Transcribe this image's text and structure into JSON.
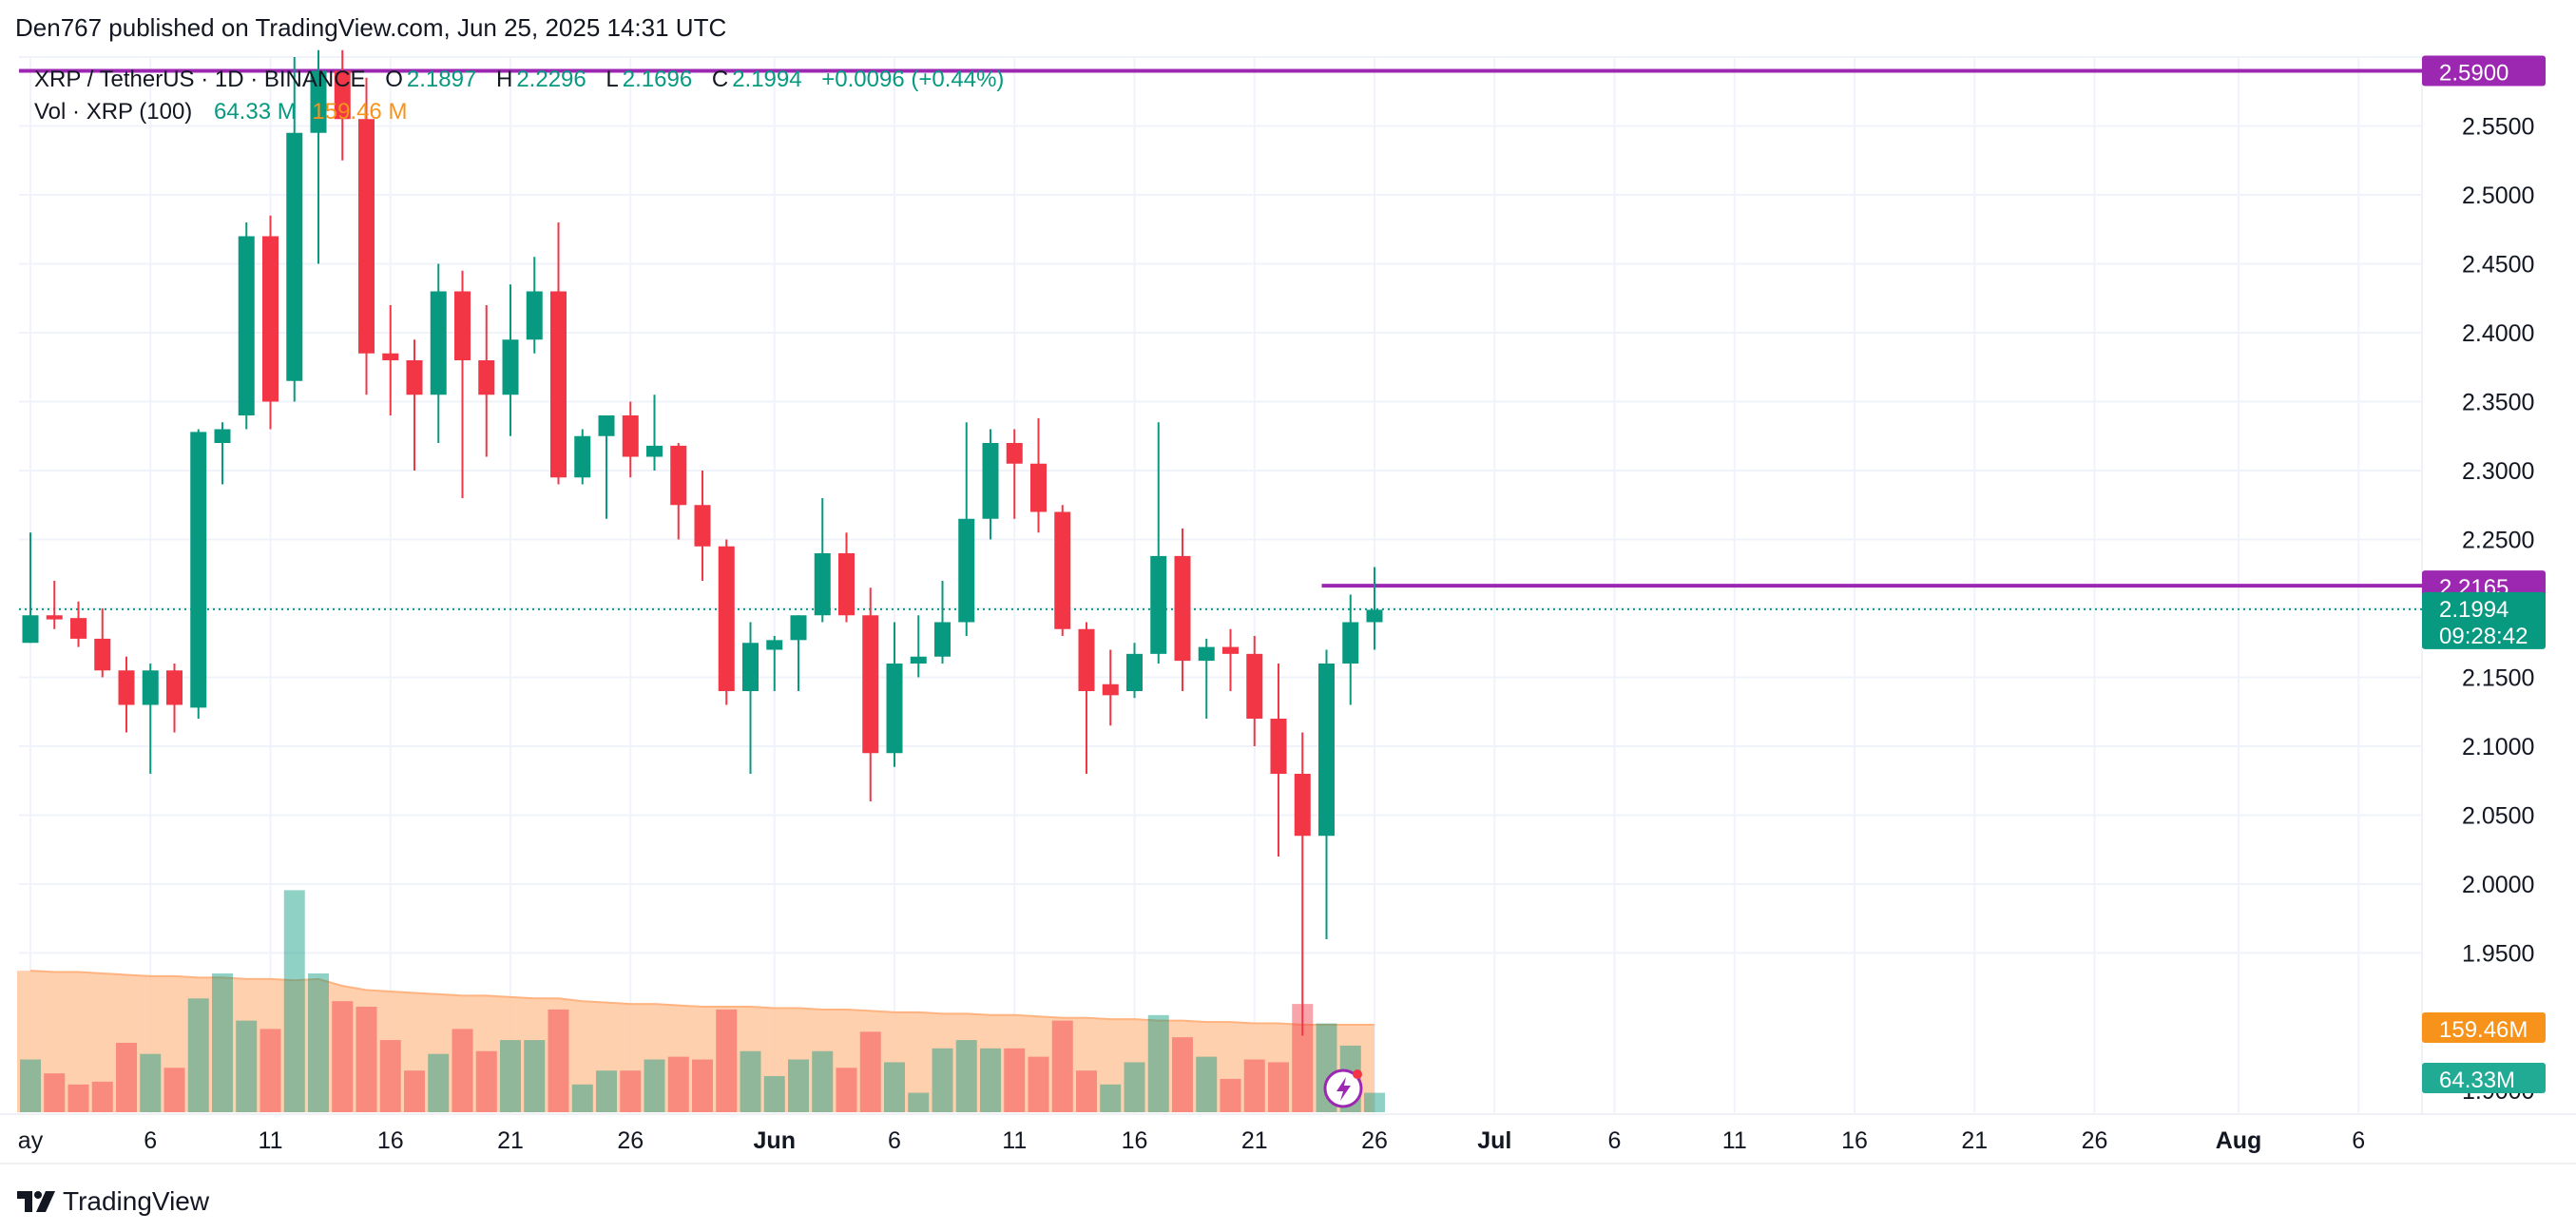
{
  "header": {
    "published": "Den767 published on TradingView.com, Jun 25, 2025 14:31 UTC"
  },
  "legend": {
    "symbol": "XRP / TetherUS · 1D · BINANCE",
    "open_label": "O",
    "open": "2.1897",
    "high_label": "H",
    "high": "2.2296",
    "low_label": "L",
    "low": "2.1696",
    "close_label": "C",
    "close": "2.1994",
    "change": "+0.0096 (+0.44%)",
    "vol_label": "Vol · XRP (100)",
    "vol_value": "64.33 M",
    "vol_ma": "159.46 M"
  },
  "footer": {
    "brand": "TradingView",
    "logo_icon": "tradingview-logo-icon"
  },
  "colors": {
    "up": "#089981",
    "down": "#f23645",
    "line": "#9c27b0",
    "vol_ma_fill": "#ffc8a0",
    "vol_ma_label": "#f7931a"
  },
  "chart_data": {
    "type": "candlestick",
    "title": "XRP / TetherUS · 1D · BINANCE",
    "ylim": [
      1.8,
      2.6
    ],
    "y_ticks": [
      "1.9500",
      "2.0000",
      "2.0500",
      "2.1000",
      "2.1500",
      "2.2000",
      "2.2500",
      "2.3000",
      "2.3500",
      "2.4000",
      "2.4500",
      "2.5000",
      "2.5500"
    ],
    "x_ticks": [
      {
        "day": 0,
        "label": "ay"
      },
      {
        "day": 5,
        "label": "6"
      },
      {
        "day": 10,
        "label": "11"
      },
      {
        "day": 15,
        "label": "16"
      },
      {
        "day": 20,
        "label": "21"
      },
      {
        "day": 25,
        "label": "26"
      },
      {
        "day": 31,
        "label": "Jun"
      },
      {
        "day": 36,
        "label": "6"
      },
      {
        "day": 41,
        "label": "11"
      },
      {
        "day": 46,
        "label": "16"
      },
      {
        "day": 51,
        "label": "21"
      },
      {
        "day": 56,
        "label": "26"
      },
      {
        "day": 61,
        "label": "Jul"
      },
      {
        "day": 66,
        "label": "6"
      },
      {
        "day": 71,
        "label": "11"
      },
      {
        "day": 76,
        "label": "16"
      },
      {
        "day": 81,
        "label": "21"
      },
      {
        "day": 86,
        "label": "26"
      },
      {
        "day": 92,
        "label": "Aug"
      },
      {
        "day": 97,
        "label": "6"
      }
    ],
    "candles": [
      {
        "o": 2.175,
        "h": 2.255,
        "l": 2.175,
        "c": 2.195
      },
      {
        "o": 2.195,
        "h": 2.22,
        "l": 2.185,
        "c": 2.192
      },
      {
        "o": 2.193,
        "h": 2.205,
        "l": 2.172,
        "c": 2.178
      },
      {
        "o": 2.178,
        "h": 2.2,
        "l": 2.15,
        "c": 2.155
      },
      {
        "o": 2.155,
        "h": 2.165,
        "l": 2.11,
        "c": 2.13
      },
      {
        "o": 2.13,
        "h": 2.16,
        "l": 2.08,
        "c": 2.155
      },
      {
        "o": 2.155,
        "h": 2.16,
        "l": 2.11,
        "c": 2.13
      },
      {
        "o": 2.128,
        "h": 2.33,
        "l": 2.12,
        "c": 2.328
      },
      {
        "o": 2.32,
        "h": 2.335,
        "l": 2.29,
        "c": 2.33
      },
      {
        "o": 2.34,
        "h": 2.48,
        "l": 2.33,
        "c": 2.47
      },
      {
        "o": 2.47,
        "h": 2.485,
        "l": 2.33,
        "c": 2.35
      },
      {
        "o": 2.365,
        "h": 2.6,
        "l": 2.35,
        "c": 2.545
      },
      {
        "o": 2.545,
        "h": 2.605,
        "l": 2.45,
        "c": 2.59
      },
      {
        "o": 2.59,
        "h": 2.605,
        "l": 2.525,
        "c": 2.555
      },
      {
        "o": 2.555,
        "h": 2.585,
        "l": 2.355,
        "c": 2.385
      },
      {
        "o": 2.385,
        "h": 2.42,
        "l": 2.34,
        "c": 2.38
      },
      {
        "o": 2.38,
        "h": 2.395,
        "l": 2.3,
        "c": 2.355
      },
      {
        "o": 2.355,
        "h": 2.45,
        "l": 2.32,
        "c": 2.43
      },
      {
        "o": 2.43,
        "h": 2.445,
        "l": 2.28,
        "c": 2.38
      },
      {
        "o": 2.38,
        "h": 2.42,
        "l": 2.31,
        "c": 2.355
      },
      {
        "o": 2.355,
        "h": 2.435,
        "l": 2.325,
        "c": 2.395
      },
      {
        "o": 2.395,
        "h": 2.455,
        "l": 2.385,
        "c": 2.43
      },
      {
        "o": 2.43,
        "h": 2.48,
        "l": 2.29,
        "c": 2.295
      },
      {
        "o": 2.295,
        "h": 2.33,
        "l": 2.29,
        "c": 2.325
      },
      {
        "o": 2.325,
        "h": 2.34,
        "l": 2.265,
        "c": 2.34
      },
      {
        "o": 2.34,
        "h": 2.35,
        "l": 2.295,
        "c": 2.31
      },
      {
        "o": 2.31,
        "h": 2.355,
        "l": 2.3,
        "c": 2.318
      },
      {
        "o": 2.318,
        "h": 2.32,
        "l": 2.25,
        "c": 2.275
      },
      {
        "o": 2.275,
        "h": 2.3,
        "l": 2.22,
        "c": 2.245
      },
      {
        "o": 2.245,
        "h": 2.25,
        "l": 2.13,
        "c": 2.14
      },
      {
        "o": 2.14,
        "h": 2.19,
        "l": 2.08,
        "c": 2.175
      },
      {
        "o": 2.17,
        "h": 2.18,
        "l": 2.14,
        "c": 2.177
      },
      {
        "o": 2.177,
        "h": 2.195,
        "l": 2.14,
        "c": 2.195
      },
      {
        "o": 2.195,
        "h": 2.28,
        "l": 2.19,
        "c": 2.24
      },
      {
        "o": 2.24,
        "h": 2.255,
        "l": 2.19,
        "c": 2.195
      },
      {
        "o": 2.195,
        "h": 2.215,
        "l": 2.06,
        "c": 2.095
      },
      {
        "o": 2.095,
        "h": 2.19,
        "l": 2.085,
        "c": 2.16
      },
      {
        "o": 2.16,
        "h": 2.195,
        "l": 2.15,
        "c": 2.165
      },
      {
        "o": 2.165,
        "h": 2.22,
        "l": 2.16,
        "c": 2.19
      },
      {
        "o": 2.19,
        "h": 2.335,
        "l": 2.18,
        "c": 2.265
      },
      {
        "o": 2.265,
        "h": 2.33,
        "l": 2.25,
        "c": 2.32
      },
      {
        "o": 2.32,
        "h": 2.33,
        "l": 2.265,
        "c": 2.305
      },
      {
        "o": 2.305,
        "h": 2.338,
        "l": 2.255,
        "c": 2.27
      },
      {
        "o": 2.27,
        "h": 2.275,
        "l": 2.18,
        "c": 2.185
      },
      {
        "o": 2.185,
        "h": 2.19,
        "l": 2.08,
        "c": 2.14
      },
      {
        "o": 2.145,
        "h": 2.17,
        "l": 2.115,
        "c": 2.137
      },
      {
        "o": 2.14,
        "h": 2.175,
        "l": 2.135,
        "c": 2.167
      },
      {
        "o": 2.167,
        "h": 2.335,
        "l": 2.16,
        "c": 2.238
      },
      {
        "o": 2.238,
        "h": 2.258,
        "l": 2.14,
        "c": 2.162
      },
      {
        "o": 2.162,
        "h": 2.178,
        "l": 2.12,
        "c": 2.172
      },
      {
        "o": 2.172,
        "h": 2.185,
        "l": 2.14,
        "c": 2.167
      },
      {
        "o": 2.167,
        "h": 2.18,
        "l": 2.1,
        "c": 2.12
      },
      {
        "o": 2.12,
        "h": 2.16,
        "l": 2.02,
        "c": 2.08
      },
      {
        "o": 2.08,
        "h": 2.11,
        "l": 1.89,
        "c": 2.035
      },
      {
        "o": 2.035,
        "h": 2.17,
        "l": 1.96,
        "c": 2.16
      },
      {
        "o": 2.16,
        "h": 2.21,
        "l": 2.13,
        "c": 2.19
      },
      {
        "o": 2.19,
        "h": 2.23,
        "l": 2.17,
        "c": 2.199
      }
    ],
    "volumes": [
      {
        "v": 38,
        "dir": "up"
      },
      {
        "v": 28,
        "dir": "down"
      },
      {
        "v": 20,
        "dir": "down"
      },
      {
        "v": 22,
        "dir": "down"
      },
      {
        "v": 50,
        "dir": "down"
      },
      {
        "v": 42,
        "dir": "up"
      },
      {
        "v": 32,
        "dir": "down"
      },
      {
        "v": 82,
        "dir": "up"
      },
      {
        "v": 100,
        "dir": "up"
      },
      {
        "v": 66,
        "dir": "up"
      },
      {
        "v": 60,
        "dir": "down"
      },
      {
        "v": 160,
        "dir": "up"
      },
      {
        "v": 100,
        "dir": "up"
      },
      {
        "v": 80,
        "dir": "down"
      },
      {
        "v": 76,
        "dir": "down"
      },
      {
        "v": 52,
        "dir": "down"
      },
      {
        "v": 30,
        "dir": "down"
      },
      {
        "v": 42,
        "dir": "up"
      },
      {
        "v": 60,
        "dir": "down"
      },
      {
        "v": 44,
        "dir": "down"
      },
      {
        "v": 52,
        "dir": "up"
      },
      {
        "v": 52,
        "dir": "up"
      },
      {
        "v": 74,
        "dir": "down"
      },
      {
        "v": 20,
        "dir": "up"
      },
      {
        "v": 30,
        "dir": "up"
      },
      {
        "v": 30,
        "dir": "down"
      },
      {
        "v": 38,
        "dir": "up"
      },
      {
        "v": 40,
        "dir": "down"
      },
      {
        "v": 38,
        "dir": "down"
      },
      {
        "v": 74,
        "dir": "down"
      },
      {
        "v": 44,
        "dir": "up"
      },
      {
        "v": 26,
        "dir": "up"
      },
      {
        "v": 38,
        "dir": "up"
      },
      {
        "v": 44,
        "dir": "up"
      },
      {
        "v": 32,
        "dir": "down"
      },
      {
        "v": 58,
        "dir": "down"
      },
      {
        "v": 36,
        "dir": "up"
      },
      {
        "v": 14,
        "dir": "up"
      },
      {
        "v": 46,
        "dir": "up"
      },
      {
        "v": 52,
        "dir": "up"
      },
      {
        "v": 46,
        "dir": "up"
      },
      {
        "v": 46,
        "dir": "down"
      },
      {
        "v": 40,
        "dir": "down"
      },
      {
        "v": 66,
        "dir": "down"
      },
      {
        "v": 30,
        "dir": "down"
      },
      {
        "v": 20,
        "dir": "up"
      },
      {
        "v": 36,
        "dir": "up"
      },
      {
        "v": 70,
        "dir": "up"
      },
      {
        "v": 54,
        "dir": "down"
      },
      {
        "v": 40,
        "dir": "up"
      },
      {
        "v": 24,
        "dir": "down"
      },
      {
        "v": 38,
        "dir": "down"
      },
      {
        "v": 36,
        "dir": "down"
      },
      {
        "v": 78,
        "dir": "down"
      },
      {
        "v": 64,
        "dir": "up"
      },
      {
        "v": 48,
        "dir": "up"
      },
      {
        "v": 14,
        "dir": "up"
      }
    ],
    "volume_ma": [
      102,
      101,
      101,
      100,
      99,
      98,
      98,
      97,
      97,
      96,
      96,
      95,
      96,
      91,
      88,
      87,
      86,
      85,
      84,
      84,
      83,
      82,
      82,
      80,
      79,
      78,
      78,
      77,
      76,
      76,
      76,
      75,
      75,
      74,
      74,
      73,
      72,
      72,
      71,
      71,
      70,
      70,
      69,
      68,
      68,
      67,
      67,
      66,
      66,
      65,
      65,
      64,
      64,
      63,
      63,
      63,
      63
    ],
    "horizontal_lines": [
      {
        "price": 2.59,
        "label": "2.5900",
        "start_day": 0
      },
      {
        "price": 2.2165,
        "label": "2.2165",
        "start_day": 54
      }
    ],
    "current_price": {
      "price": 2.1994,
      "label": "2.1994",
      "countdown": "09:28:42"
    },
    "vol_ma_tag": "159.46M",
    "vol_tag": "64.33M",
    "hidden_tick": "1.9000"
  }
}
